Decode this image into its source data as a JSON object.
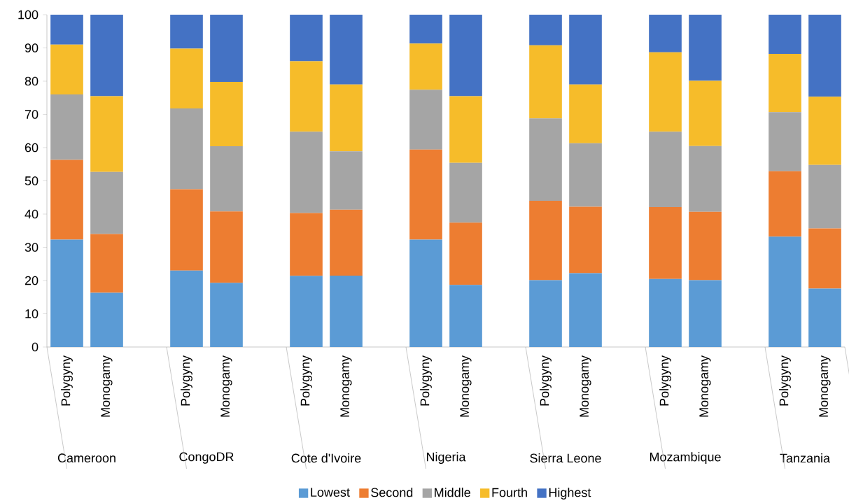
{
  "chart_data": {
    "type": "bar",
    "stacked": true,
    "categories": [
      "Polygyny",
      "Monogamy",
      null,
      "Polygyny",
      "Monogamy",
      null,
      "Polygyny",
      "Monogamy",
      null,
      "Polygyny",
      "Monogamy",
      null,
      "Polygyny",
      "Monogamy",
      null,
      "Polygyny",
      "Monogamy",
      null,
      "Polygyny",
      "Monogamy"
    ],
    "series": [
      {
        "name": "Lowest",
        "color": "#5b9bd5",
        "values": [
          32.3,
          16.3,
          null,
          23,
          19.3,
          null,
          21.4,
          21.5,
          null,
          32.3,
          18.7,
          null,
          20.1,
          22.2,
          null,
          20.5,
          20.1,
          null,
          33.2,
          17.6
        ]
      },
      {
        "name": "Second",
        "color": "#ed7d31",
        "values": [
          24,
          17.7,
          null,
          24.5,
          21.5,
          null,
          18.9,
          19.8,
          null,
          27.1,
          18.7,
          null,
          23.9,
          20,
          null,
          21.6,
          20.6,
          null,
          19.7,
          18.1
        ]
      },
      {
        "name": "Middle",
        "color": "#a5a5a5",
        "values": [
          19.7,
          18.7,
          null,
          24.3,
          19.6,
          null,
          24.5,
          17.6,
          null,
          18,
          18,
          null,
          24.8,
          19.1,
          null,
          22.7,
          19.8,
          null,
          17.8,
          19.1
        ]
      },
      {
        "name": "Fourth",
        "color": "#f6bc2a",
        "values": [
          15,
          22.8,
          null,
          18,
          19.4,
          null,
          21.2,
          20.1,
          null,
          13.9,
          20.1,
          null,
          22,
          17.7,
          null,
          23.9,
          19.6,
          null,
          17.5,
          20.5
        ]
      },
      {
        "name": "Highest",
        "color": "#4472c4",
        "values": [
          9,
          24.5,
          null,
          10.2,
          20.2,
          null,
          14,
          21,
          null,
          8.7,
          24.5,
          null,
          9.2,
          21,
          null,
          11.3,
          19.9,
          null,
          11.8,
          24.7
        ]
      }
    ],
    "ylim": [
      0,
      100
    ],
    "yticks": [
      0,
      10,
      20,
      30,
      40,
      50,
      60,
      70,
      80,
      90,
      100
    ],
    "legend": "bottom",
    "annotations": [
      "Cameroon",
      "CongoDR",
      "Cote d'Ivoire",
      "Nigeria",
      "Sierra Leone",
      "Mozambique",
      "Tanzania"
    ]
  }
}
